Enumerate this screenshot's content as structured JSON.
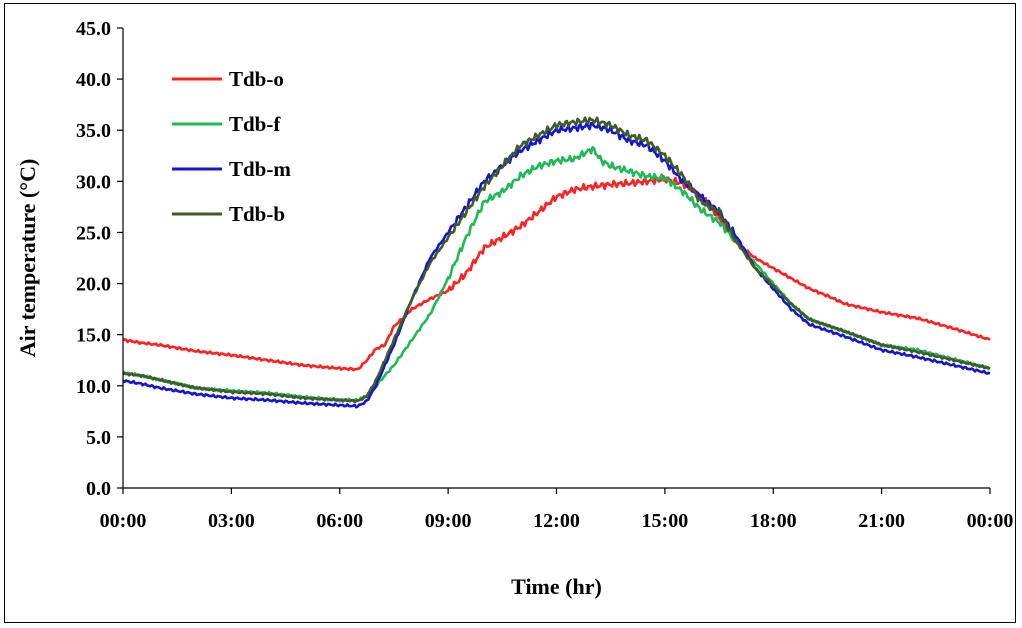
{
  "chart_data": {
    "type": "line",
    "xlabel": "Time (hr)",
    "ylabel": "Air temperature (°C)",
    "ylim": [
      0,
      45
    ],
    "xlim": [
      0,
      24
    ],
    "x_tick_labels": [
      "00:00",
      "03:00",
      "06:00",
      "09:00",
      "12:00",
      "15:00",
      "18:00",
      "21:00",
      "00:00"
    ],
    "y_tick_labels": [
      "0.0",
      "5.0",
      "10.0",
      "15.0",
      "20.0",
      "25.0",
      "30.0",
      "35.0",
      "40.0",
      "45.0"
    ],
    "grid": false,
    "legend_position": "top-left",
    "series": [
      {
        "name": "Tdb-o",
        "color": "#ff2020",
        "points": [
          [
            0,
            14.5
          ],
          [
            0.5,
            14.2
          ],
          [
            1,
            14.0
          ],
          [
            2,
            13.4
          ],
          [
            3,
            13.0
          ],
          [
            4,
            12.5
          ],
          [
            5,
            12.0
          ],
          [
            6,
            11.7
          ],
          [
            6.5,
            11.6
          ],
          [
            6.75,
            12.5
          ],
          [
            7,
            13.6
          ],
          [
            7.25,
            14.0
          ],
          [
            7.5,
            15.8
          ],
          [
            8,
            17.5
          ],
          [
            8.5,
            18.5
          ],
          [
            9,
            19.3
          ],
          [
            9.5,
            21.0
          ],
          [
            10,
            23.5
          ],
          [
            10.5,
            24.5
          ],
          [
            11,
            25.6
          ],
          [
            11.5,
            27.0
          ],
          [
            12,
            28.5
          ],
          [
            12.5,
            29.2
          ],
          [
            13,
            29.5
          ],
          [
            13.5,
            29.7
          ],
          [
            14,
            29.8
          ],
          [
            14.5,
            30.0
          ],
          [
            15,
            30.2
          ],
          [
            15.5,
            29.8
          ],
          [
            16,
            28.5
          ],
          [
            16.5,
            26.5
          ],
          [
            17,
            24.0
          ],
          [
            17.5,
            22.5
          ],
          [
            18,
            21.5
          ],
          [
            18.5,
            20.5
          ],
          [
            19,
            19.5
          ],
          [
            19.5,
            18.8
          ],
          [
            20,
            18.0
          ],
          [
            21,
            17.2
          ],
          [
            22,
            16.6
          ],
          [
            23,
            15.6
          ],
          [
            24,
            14.5
          ]
        ]
      },
      {
        "name": "Tdb-f",
        "color": "#1fba55",
        "points": [
          [
            0,
            11.3
          ],
          [
            0.5,
            11.0
          ],
          [
            1,
            10.6
          ],
          [
            2,
            9.8
          ],
          [
            3,
            9.5
          ],
          [
            4,
            9.3
          ],
          [
            5,
            8.9
          ],
          [
            6,
            8.6
          ],
          [
            6.5,
            8.6
          ],
          [
            6.75,
            9.0
          ],
          [
            7,
            10.0
          ],
          [
            7.5,
            12.0
          ],
          [
            8,
            14.5
          ],
          [
            8.5,
            17.0
          ],
          [
            9,
            20.5
          ],
          [
            9.5,
            24.5
          ],
          [
            10,
            28.0
          ],
          [
            10.5,
            29.0
          ],
          [
            11,
            30.5
          ],
          [
            11.5,
            31.5
          ],
          [
            12,
            32.0
          ],
          [
            12.5,
            32.2
          ],
          [
            13,
            33.2
          ],
          [
            13.25,
            32.0
          ],
          [
            13.5,
            31.5
          ],
          [
            14,
            31.0
          ],
          [
            14.5,
            30.5
          ],
          [
            15,
            30.3
          ],
          [
            15.5,
            29.0
          ],
          [
            16,
            27.2
          ],
          [
            16.5,
            26.0
          ],
          [
            17,
            24.0
          ],
          [
            17.5,
            22.0
          ],
          [
            18,
            20.0
          ],
          [
            18.5,
            18.0
          ],
          [
            19,
            16.5
          ],
          [
            20,
            15.3
          ],
          [
            21,
            14.0
          ],
          [
            22,
            13.5
          ],
          [
            23,
            12.6
          ],
          [
            24,
            11.7
          ]
        ]
      },
      {
        "name": "Tdb-m",
        "color": "#1414d2",
        "points": [
          [
            0,
            10.5
          ],
          [
            0.5,
            10.2
          ],
          [
            1,
            9.8
          ],
          [
            2,
            9.2
          ],
          [
            3,
            8.8
          ],
          [
            4,
            8.6
          ],
          [
            5,
            8.3
          ],
          [
            6,
            8.1
          ],
          [
            6.5,
            8.0
          ],
          [
            6.75,
            8.5
          ],
          [
            7,
            10.0
          ],
          [
            7.5,
            14.0
          ],
          [
            8,
            18.5
          ],
          [
            8.5,
            22.5
          ],
          [
            9,
            25.0
          ],
          [
            9.5,
            27.5
          ],
          [
            10,
            30.0
          ],
          [
            10.5,
            31.5
          ],
          [
            11,
            33.0
          ],
          [
            11.5,
            34.0
          ],
          [
            12,
            35.0
          ],
          [
            12.5,
            35.2
          ],
          [
            13,
            35.5
          ],
          [
            13.5,
            35.0
          ],
          [
            14,
            34.0
          ],
          [
            14.5,
            33.5
          ],
          [
            15,
            32.0
          ],
          [
            15.5,
            30.0
          ],
          [
            16,
            28.5
          ],
          [
            16.5,
            27.0
          ],
          [
            17,
            24.5
          ],
          [
            17.5,
            21.5
          ],
          [
            18,
            19.5
          ],
          [
            18.5,
            17.5
          ],
          [
            19,
            16.0
          ],
          [
            20,
            14.8
          ],
          [
            21,
            13.5
          ],
          [
            22,
            12.8
          ],
          [
            23,
            12.0
          ],
          [
            24,
            11.2
          ]
        ]
      },
      {
        "name": "Tdb-b",
        "color": "#3f5b2a",
        "points": [
          [
            0,
            11.2
          ],
          [
            0.5,
            11.0
          ],
          [
            1,
            10.6
          ],
          [
            2,
            9.8
          ],
          [
            3,
            9.4
          ],
          [
            4,
            9.2
          ],
          [
            5,
            8.8
          ],
          [
            6,
            8.6
          ],
          [
            6.5,
            8.5
          ],
          [
            6.75,
            9.0
          ],
          [
            7,
            10.5
          ],
          [
            7.5,
            14.5
          ],
          [
            8,
            18.5
          ],
          [
            8.5,
            22.0
          ],
          [
            9,
            24.5
          ],
          [
            9.5,
            27.0
          ],
          [
            10,
            29.5
          ],
          [
            10.5,
            31.5
          ],
          [
            11,
            33.5
          ],
          [
            11.5,
            34.5
          ],
          [
            12,
            35.5
          ],
          [
            12.5,
            35.8
          ],
          [
            13,
            36.0
          ],
          [
            13.5,
            35.5
          ],
          [
            14,
            34.5
          ],
          [
            14.5,
            34.0
          ],
          [
            15,
            32.5
          ],
          [
            15.5,
            30.5
          ],
          [
            16,
            28.0
          ],
          [
            16.5,
            27.0
          ],
          [
            17,
            24.0
          ],
          [
            17.5,
            21.5
          ],
          [
            18,
            19.8
          ],
          [
            18.5,
            18.0
          ],
          [
            19,
            16.5
          ],
          [
            20,
            15.3
          ],
          [
            21,
            14.0
          ],
          [
            22,
            13.3
          ],
          [
            23,
            12.5
          ],
          [
            24,
            11.7
          ]
        ]
      }
    ]
  }
}
